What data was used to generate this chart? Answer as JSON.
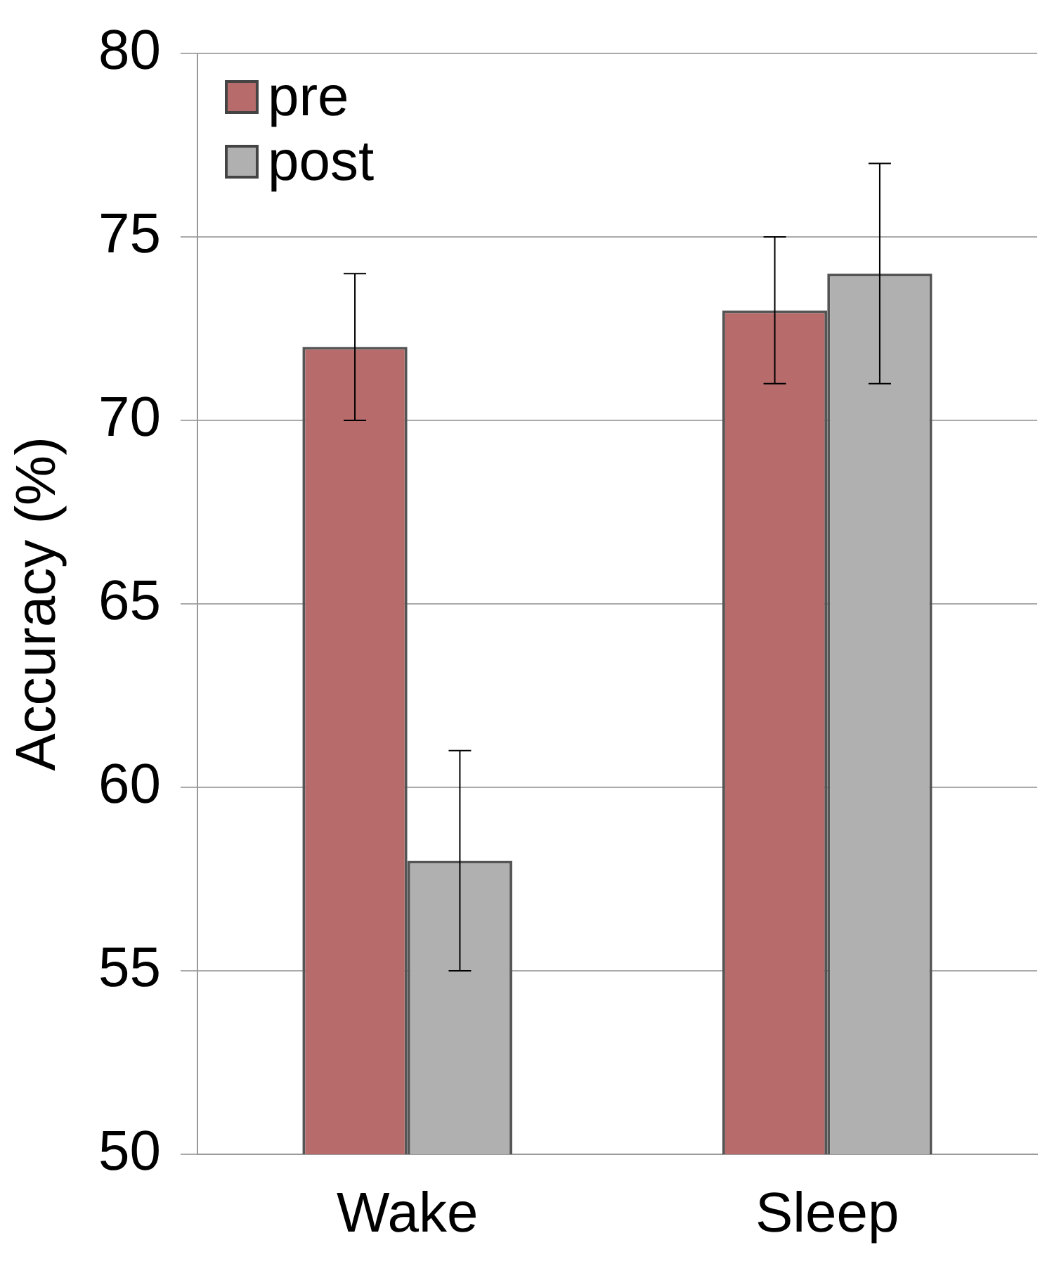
{
  "chart_data": {
    "type": "bar",
    "ylabel": "Accuracy (%)",
    "categories": [
      "Wake",
      "Sleep"
    ],
    "series": [
      {
        "name": "pre",
        "color": "#b86b6b",
        "values": [
          72,
          73
        ],
        "errors": [
          2,
          2
        ]
      },
      {
        "name": "post",
        "color": "#b0b0b0",
        "values": [
          58,
          74
        ],
        "errors": [
          3,
          3
        ]
      }
    ],
    "ylim": [
      50,
      80
    ],
    "yticks": [
      50,
      55,
      60,
      65,
      70,
      75,
      80
    ],
    "grid": "y",
    "legend": "top left"
  }
}
